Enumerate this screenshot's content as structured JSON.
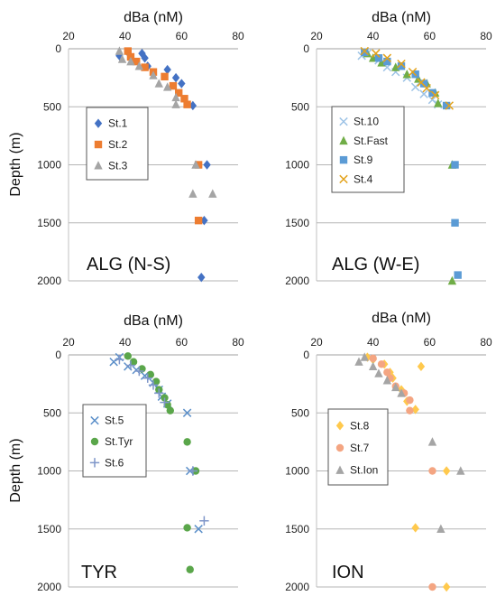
{
  "colors": {
    "blue": "#4472c4",
    "orange": "#ed7d31",
    "gray": "#a5a5a5",
    "green": "#70ad47",
    "gold": "#ffc000",
    "lightblue": "#9dc3e6",
    "salmon": "#f4b183",
    "lightorange": "#ffd966"
  },
  "chart_data": [
    {
      "type": "scatter",
      "title": "ALG (N-S)",
      "xlabel": "dBa (nM)",
      "ylabel": "Depth (m)",
      "xlim": [
        20,
        80
      ],
      "ylim": [
        2000,
        0
      ],
      "x_ticks": [
        "20",
        "40",
        "60",
        "80"
      ],
      "y_ticks": [
        "0",
        "500",
        "1000",
        "1500",
        "2000"
      ],
      "grid": "horizontal",
      "legend_position": "middle-left",
      "series": [
        {
          "name": "St.1",
          "marker": "diamond",
          "color": "#4472c4",
          "points": [
            [
              38,
              60
            ],
            [
              41,
              30
            ],
            [
              46,
              40
            ],
            [
              47,
              80
            ],
            [
              48,
              150
            ],
            [
              55,
              180
            ],
            [
              58,
              250
            ],
            [
              60,
              300
            ],
            [
              64,
              490
            ],
            [
              69,
              1000
            ],
            [
              68,
              1480
            ],
            [
              67,
              1970
            ]
          ]
        },
        {
          "name": "St.2",
          "marker": "square",
          "color": "#ed7d31",
          "points": [
            [
              41,
              20
            ],
            [
              42,
              70
            ],
            [
              44,
              110
            ],
            [
              47,
              160
            ],
            [
              50,
              200
            ],
            [
              54,
              240
            ],
            [
              57,
              320
            ],
            [
              59,
              380
            ],
            [
              61,
              430
            ],
            [
              62,
              480
            ],
            [
              66,
              1000
            ],
            [
              66,
              1480
            ]
          ]
        },
        {
          "name": "St.3",
          "marker": "triangle",
          "color": "#a5a5a5",
          "points": [
            [
              38,
              20
            ],
            [
              39,
              90
            ],
            [
              42,
              110
            ],
            [
              45,
              150
            ],
            [
              50,
              230
            ],
            [
              52,
              300
            ],
            [
              55,
              330
            ],
            [
              58,
              420
            ],
            [
              58,
              480
            ],
            [
              65,
              1000
            ],
            [
              64,
              1250
            ],
            [
              71,
              1250
            ]
          ]
        }
      ]
    },
    {
      "type": "scatter",
      "title": "ALG (W-E)",
      "xlabel": "dBa (nM)",
      "ylabel": "",
      "xlim": [
        20,
        80
      ],
      "ylim": [
        2000,
        0
      ],
      "x_ticks": [
        "20",
        "40",
        "60",
        "80"
      ],
      "y_ticks": [
        "0",
        "500",
        "1000",
        "1500",
        "2000"
      ],
      "grid": "horizontal",
      "legend_position": "middle-left",
      "series": [
        {
          "name": "St.10",
          "marker": "x",
          "color": "#9dc3e6",
          "points": [
            [
              36,
              60
            ],
            [
              38,
              40
            ],
            [
              42,
              100
            ],
            [
              45,
              160
            ],
            [
              48,
              200
            ],
            [
              52,
              250
            ],
            [
              55,
              330
            ],
            [
              58,
              390
            ],
            [
              61,
              440
            ],
            [
              63,
              480
            ]
          ]
        },
        {
          "name": "St.Fast",
          "marker": "triangle",
          "color": "#70ad47",
          "points": [
            [
              38,
              40
            ],
            [
              40,
              80
            ],
            [
              43,
              120
            ],
            [
              48,
              160
            ],
            [
              52,
              220
            ],
            [
              56,
              260
            ],
            [
              59,
              300
            ],
            [
              62,
              380
            ],
            [
              63,
              470
            ],
            [
              68,
              1000
            ],
            [
              68,
              2000
            ]
          ]
        },
        {
          "name": "St.9",
          "marker": "square",
          "color": "#5b9bd5",
          "points": [
            [
              37,
              30
            ],
            [
              42,
              80
            ],
            [
              45,
              110
            ],
            [
              50,
              150
            ],
            [
              55,
              220
            ],
            [
              58,
              300
            ],
            [
              61,
              380
            ],
            [
              66,
              490
            ],
            [
              69,
              1000
            ],
            [
              69,
              1500
            ],
            [
              70,
              1950
            ]
          ]
        },
        {
          "name": "St.4",
          "marker": "x",
          "color": "#e3a21a",
          "points": [
            [
              37,
              20
            ],
            [
              41,
              40
            ],
            [
              45,
              80
            ],
            [
              50,
              130
            ],
            [
              54,
              200
            ],
            [
              57,
              290
            ],
            [
              59,
              340
            ],
            [
              62,
              400
            ],
            [
              67,
              490
            ]
          ]
        }
      ]
    },
    {
      "type": "scatter",
      "title": "TYR",
      "xlabel": "dBa (nM)",
      "ylabel": "Depth (m)",
      "xlim": [
        20,
        80
      ],
      "ylim": [
        2000,
        0
      ],
      "x_ticks": [
        "20",
        "40",
        "60",
        "80"
      ],
      "y_ticks": [
        "0",
        "500",
        "1000",
        "1500",
        "2000"
      ],
      "grid": "horizontal",
      "legend_position": "middle-left",
      "series": [
        {
          "name": "St.5",
          "marker": "x",
          "color": "#5b8fc9",
          "points": [
            [
              36,
              60
            ],
            [
              38,
              20
            ],
            [
              41,
              100
            ],
            [
              44,
              130
            ],
            [
              47,
              180
            ],
            [
              50,
              240
            ],
            [
              52,
              300
            ],
            [
              53,
              360
            ],
            [
              55,
              420
            ],
            [
              62,
              500
            ],
            [
              63,
              1000
            ],
            [
              66,
              1500
            ]
          ]
        },
        {
          "name": "St.Tyr",
          "marker": "circle",
          "color": "#5aa64a",
          "points": [
            [
              41,
              10
            ],
            [
              43,
              60
            ],
            [
              46,
              120
            ],
            [
              49,
              170
            ],
            [
              51,
              230
            ],
            [
              52,
              300
            ],
            [
              54,
              370
            ],
            [
              55,
              430
            ],
            [
              56,
              480
            ],
            [
              62,
              750
            ],
            [
              65,
              1000
            ],
            [
              62,
              1490
            ],
            [
              63,
              1850
            ]
          ]
        },
        {
          "name": "St.6",
          "marker": "plus",
          "color": "#7f96c9",
          "points": [
            [
              38,
              40
            ],
            [
              42,
              90
            ],
            [
              45,
              140
            ],
            [
              48,
              200
            ],
            [
              50,
              260
            ],
            [
              52,
              330
            ],
            [
              54,
              410
            ],
            [
              64,
              1000
            ],
            [
              68,
              1430
            ]
          ]
        }
      ]
    },
    {
      "type": "scatter",
      "title": "ION",
      "xlabel": "dBa (nM)",
      "ylabel": "",
      "xlim": [
        20,
        80
      ],
      "ylim": [
        2000,
        0
      ],
      "x_ticks": [
        "20",
        "40",
        "60",
        "80"
      ],
      "y_ticks": [
        "0",
        "500",
        "1000",
        "1500",
        "2000"
      ],
      "grid": "horizontal",
      "legend_position": "middle-left",
      "series": [
        {
          "name": "St.8",
          "marker": "diamond",
          "color": "#ffc94d",
          "points": [
            [
              38,
              20
            ],
            [
              40,
              40
            ],
            [
              44,
              80
            ],
            [
              46,
              150
            ],
            [
              47,
              200
            ],
            [
              50,
              300
            ],
            [
              52,
              400
            ],
            [
              55,
              470
            ],
            [
              66,
              1000
            ],
            [
              55,
              1490
            ],
            [
              66,
              2000
            ],
            [
              57,
              100
            ]
          ]
        },
        {
          "name": "St.7",
          "marker": "circle",
          "color": "#f4a582",
          "points": [
            [
              40,
              30
            ],
            [
              43,
              80
            ],
            [
              45,
              150
            ],
            [
              46,
              200
            ],
            [
              48,
              270
            ],
            [
              51,
              330
            ],
            [
              53,
              390
            ],
            [
              53,
              480
            ],
            [
              61,
              1000
            ],
            [
              61,
              2000
            ]
          ]
        },
        {
          "name": "St.Ion",
          "marker": "triangle",
          "color": "#a5a5a5",
          "points": [
            [
              35,
              60
            ],
            [
              37,
              20
            ],
            [
              40,
              100
            ],
            [
              42,
              160
            ],
            [
              45,
              220
            ],
            [
              48,
              280
            ],
            [
              50,
              330
            ],
            [
              61,
              750
            ],
            [
              71,
              1000
            ],
            [
              64,
              1500
            ]
          ]
        }
      ]
    }
  ]
}
